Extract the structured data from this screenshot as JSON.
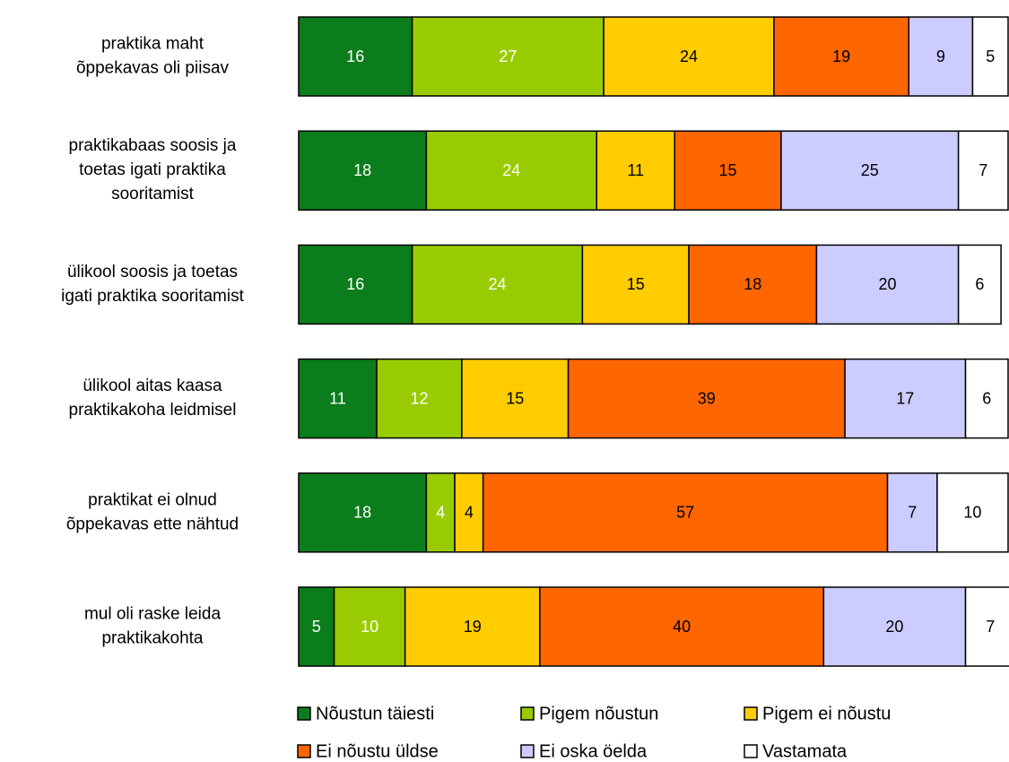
{
  "chart_data": {
    "type": "stacked-bar-horizontal",
    "categories": [
      [
        "praktika maht",
        "õppekavas oli piisav"
      ],
      [
        "praktikabaas soosis ja",
        "toetas igati praktika",
        "sooritamist"
      ],
      [
        "ülikool soosis ja toetas",
        "igati praktika sooritamist"
      ],
      [
        "ülikool aitas kaasa",
        "praktikakoha leidmisel"
      ],
      [
        "praktikat ei olnud",
        "õppekavas ette nähtud"
      ],
      [
        "mul oli raske leida",
        "praktikakohta"
      ]
    ],
    "series": [
      {
        "name": "Nõustun täiesti",
        "color": "#0b7d1c",
        "label_color": "#ffffff",
        "values": [
          16,
          18,
          16,
          11,
          18,
          5
        ]
      },
      {
        "name": "Pigem nõustun",
        "color": "#99cc00",
        "label_color": "#ffffff",
        "values": [
          27,
          24,
          24,
          12,
          4,
          10
        ]
      },
      {
        "name": "Pigem ei nõustu",
        "color": "#ffcc00",
        "label_color": "#000000",
        "values": [
          24,
          11,
          15,
          15,
          4,
          19
        ]
      },
      {
        "name": "Ei nõustu üldse",
        "color": "#ff6600",
        "label_color": "#000000",
        "values": [
          19,
          15,
          18,
          39,
          57,
          40
        ]
      },
      {
        "name": "Ei oska öelda",
        "color": "#ccccff",
        "label_color": "#000000",
        "values": [
          9,
          25,
          20,
          17,
          7,
          20
        ]
      },
      {
        "name": "Vastamata",
        "color": "#ffffff",
        "label_color": "#000000",
        "values": [
          5,
          7,
          6,
          6,
          10,
          7
        ]
      }
    ],
    "xlim": [
      0,
      100
    ]
  }
}
